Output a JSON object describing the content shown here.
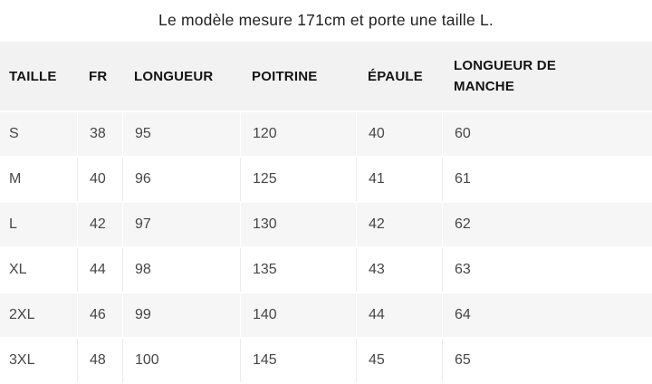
{
  "title": "Le modèle mesure 171cm et porte une taille L.",
  "size_table": {
    "columns": [
      "TAILLE",
      "FR",
      "LONGUEUR",
      "POITRINE",
      "ÉPAULE",
      "LONGUEUR DE MANCHE"
    ],
    "rows": [
      [
        "S",
        "38",
        "95",
        "120",
        "40",
        "60"
      ],
      [
        "M",
        "40",
        "96",
        "125",
        "41",
        "61"
      ],
      [
        "L",
        "42",
        "97",
        "130",
        "42",
        "62"
      ],
      [
        "XL",
        "44",
        "98",
        "135",
        "43",
        "63"
      ],
      [
        "2XL",
        "46",
        "99",
        "140",
        "44",
        "64"
      ],
      [
        "3XL",
        "48",
        "100",
        "145",
        "45",
        "65"
      ]
    ]
  },
  "colors": {
    "header_bg": "#f2f2f2",
    "row_stripe_bg": "#f6f6f6",
    "divider_on_white_row": "#ececec",
    "divider_on_gray_row": "#ffffff",
    "header_text": "#141414",
    "body_text": "#474747",
    "title_text": "#212121"
  }
}
